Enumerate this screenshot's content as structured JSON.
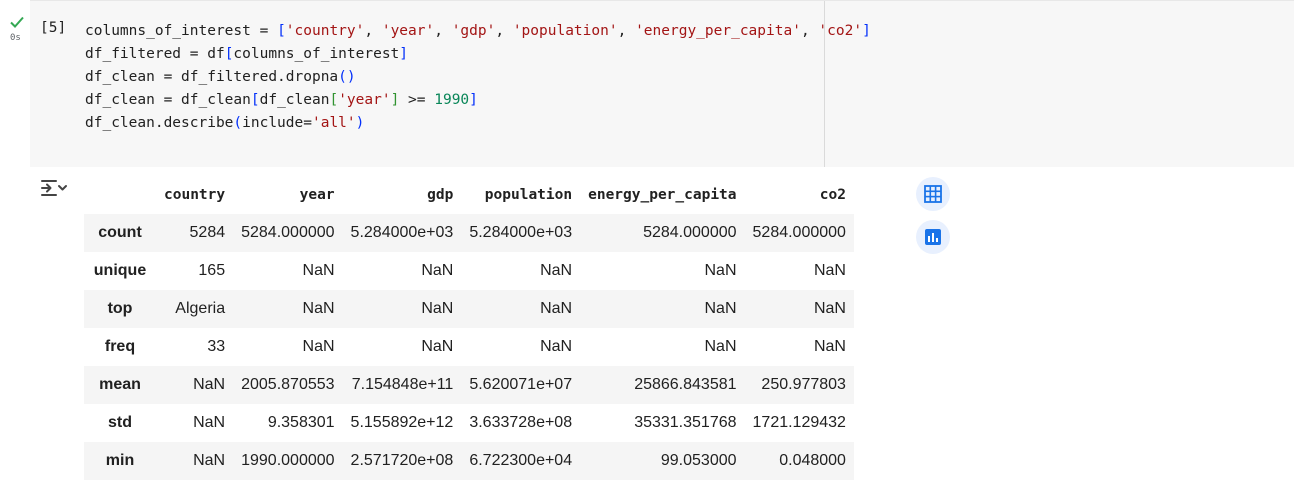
{
  "cell": {
    "run_time": "0s",
    "execution_count": "[5]",
    "code": {
      "line1": {
        "var": "columns_of_interest = ",
        "open": "[",
        "items": [
          "'country'",
          "'year'",
          "'gdp'",
          "'population'",
          "'energy_per_capita'",
          "'co2'"
        ],
        "sep": ", ",
        "close": "]"
      },
      "line2": {
        "pre": "df_filtered = df",
        "open": "[",
        "inner": "columns_of_interest",
        "close": "]"
      },
      "line3": {
        "pre": "df_clean = df_filtered.dropna",
        "open": "(",
        "close": ")"
      },
      "line4": {
        "pre": "df_clean = df_clean",
        "open": "[",
        "mid1": "df_clean",
        "open2": "[",
        "key": "'year'",
        "close2": "]",
        "op": " >= ",
        "num": "1990",
        "close": "]"
      },
      "line5": {
        "pre": "df_clean.describe",
        "open": "(",
        "arg": "include=",
        "val": "'all'",
        "close": ")"
      }
    }
  },
  "output": {
    "columns": [
      "country",
      "year",
      "gdp",
      "population",
      "energy_per_capita",
      "co2"
    ],
    "rows": [
      {
        "label": "count",
        "values": [
          "5284",
          "5284.000000",
          "5.284000e+03",
          "5.284000e+03",
          "5284.000000",
          "5284.000000"
        ]
      },
      {
        "label": "unique",
        "values": [
          "165",
          "NaN",
          "NaN",
          "NaN",
          "NaN",
          "NaN"
        ]
      },
      {
        "label": "top",
        "values": [
          "Algeria",
          "NaN",
          "NaN",
          "NaN",
          "NaN",
          "NaN"
        ]
      },
      {
        "label": "freq",
        "values": [
          "33",
          "NaN",
          "NaN",
          "NaN",
          "NaN",
          "NaN"
        ]
      },
      {
        "label": "mean",
        "values": [
          "NaN",
          "2005.870553",
          "7.154848e+11",
          "5.620071e+07",
          "25866.843581",
          "250.977803"
        ]
      },
      {
        "label": "std",
        "values": [
          "NaN",
          "9.358301",
          "5.155892e+12",
          "3.633728e+08",
          "35331.351768",
          "1721.129432"
        ]
      },
      {
        "label": "min",
        "values": [
          "NaN",
          "1990.000000",
          "2.571720e+08",
          "6.722300e+04",
          "99.053000",
          "0.048000"
        ]
      }
    ]
  },
  "colors": {
    "accent": "#1a73e8",
    "check": "#34a853",
    "string": "#a31515",
    "number": "#098658"
  },
  "icons": {
    "run_status": "check-icon",
    "output_toggle": "output-toggle-icon",
    "table": "table-icon",
    "chart": "chart-icon"
  }
}
